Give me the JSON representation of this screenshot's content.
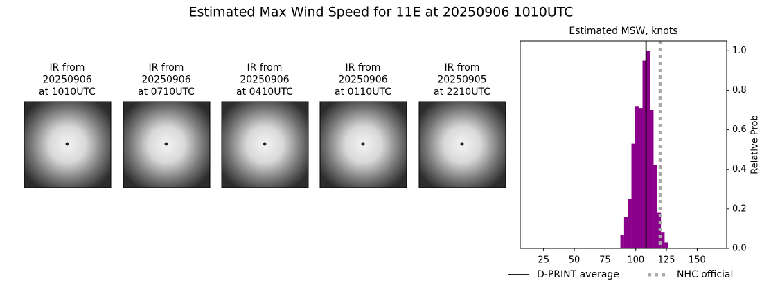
{
  "title": "Estimated Max Wind Speed for 11E at 20250906 1010UTC",
  "images": [
    {
      "title_lines": [
        "IR from",
        "20250906",
        "at 1010UTC"
      ]
    },
    {
      "title_lines": [
        "IR from",
        "20250906",
        "at 0710UTC"
      ]
    },
    {
      "title_lines": [
        "IR from",
        "20250906",
        "at 0410UTC"
      ]
    },
    {
      "title_lines": [
        "IR from",
        "20250906",
        "at 0110UTC"
      ]
    },
    {
      "title_lines": [
        "IR from",
        "20250905",
        "at 2210UTC"
      ]
    }
  ],
  "chart_data": {
    "type": "histogram",
    "title": "Estimated MSW, knots",
    "y_label": "Relative Prob",
    "bins": [
      87.5,
      90.5,
      93.5,
      96.5,
      99.5,
      102.5,
      105.5,
      108.5,
      111.5,
      114.5,
      117.5,
      120.5,
      123.5,
      126.5
    ],
    "values": [
      0.07,
      0.16,
      0.25,
      0.53,
      0.72,
      0.71,
      0.95,
      1.0,
      0.7,
      0.42,
      0.18,
      0.08,
      0.03
    ],
    "color": "#8b008b",
    "xlim": [
      6,
      174
    ],
    "xticks": [
      25,
      50,
      75,
      100,
      125,
      150
    ],
    "ylim": [
      0,
      1.05
    ],
    "yticks": [
      {
        "value": 0,
        "label": "0.0"
      },
      {
        "value": 0.2,
        "label": "0.2"
      },
      {
        "value": 0.4,
        "label": "0.4"
      },
      {
        "value": 0.6,
        "label": "0.6"
      },
      {
        "value": 0.8,
        "label": "0.8"
      },
      {
        "value": 1,
        "label": "1.0"
      }
    ],
    "lines": [
      {
        "name": "D-PRINT average",
        "value": 108.4,
        "color": "#000000",
        "style": "solid"
      },
      {
        "name": "NHC official",
        "value": 120,
        "color": "#aaaaaa",
        "style": "dotted"
      }
    ]
  }
}
